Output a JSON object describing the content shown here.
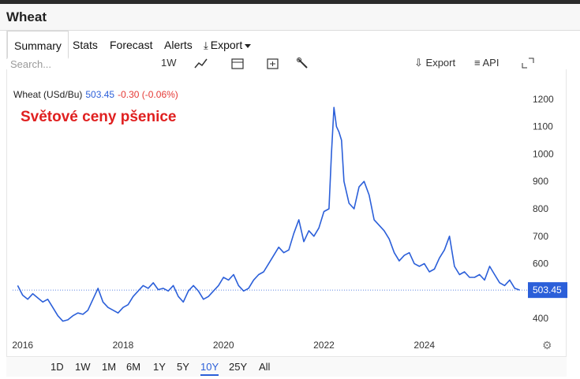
{
  "app": {
    "title": "Wheat"
  },
  "tabs": [
    {
      "label": "Summary",
      "active": true
    },
    {
      "label": "Stats"
    },
    {
      "label": "Forecast"
    },
    {
      "label": "Alerts"
    },
    {
      "label": "Export",
      "icon": "download-icon",
      "dropdown": true
    }
  ],
  "toolbar": {
    "search_placeholder": "Search...",
    "interval": "1W",
    "export_label": "Export",
    "api_label": "API"
  },
  "legend": {
    "name": "Wheat (USd/Bu)",
    "price": "503.45",
    "change": "-0.30 (-0.06%)"
  },
  "annotation": "Světové ceny pšenice",
  "ranges": [
    "1D",
    "1W",
    "1M",
    "6M",
    "1Y",
    "5Y",
    "10Y",
    "25Y",
    "All"
  ],
  "active_range": "10Y",
  "colors": {
    "line": "#2b5fd9",
    "accent": "#2b5fd9",
    "negative": "#e53935",
    "annotation": "#e02020"
  },
  "chart_data": {
    "type": "line",
    "series": [
      {
        "name": "Wheat (USd/Bu)",
        "x": [
          2015.9,
          2016.0,
          2016.1,
          2016.2,
          2016.3,
          2016.4,
          2016.5,
          2016.6,
          2016.7,
          2016.8,
          2016.9,
          2017.0,
          2017.1,
          2017.2,
          2017.3,
          2017.4,
          2017.5,
          2017.6,
          2017.7,
          2017.8,
          2017.9,
          2018.0,
          2018.1,
          2018.2,
          2018.3,
          2018.4,
          2018.5,
          2018.6,
          2018.7,
          2018.8,
          2018.9,
          2019.0,
          2019.1,
          2019.2,
          2019.3,
          2019.4,
          2019.5,
          2019.6,
          2019.7,
          2019.8,
          2019.9,
          2020.0,
          2020.1,
          2020.2,
          2020.3,
          2020.4,
          2020.5,
          2020.6,
          2020.7,
          2020.8,
          2020.9,
          2021.0,
          2021.1,
          2021.2,
          2021.3,
          2021.4,
          2021.5,
          2021.6,
          2021.7,
          2021.8,
          2021.9,
          2022.0,
          2022.1,
          2022.15,
          2022.2,
          2022.25,
          2022.3,
          2022.35,
          2022.4,
          2022.5,
          2022.6,
          2022.7,
          2022.8,
          2022.9,
          2023.0,
          2023.1,
          2023.2,
          2023.3,
          2023.4,
          2023.5,
          2023.6,
          2023.7,
          2023.8,
          2023.9,
          2024.0,
          2024.1,
          2024.2,
          2024.3,
          2024.4,
          2024.5,
          2024.6,
          2024.7,
          2024.8,
          2024.9,
          2025.0,
          2025.1,
          2025.2,
          2025.3,
          2025.4,
          2025.5,
          2025.6,
          2025.7,
          2025.8,
          2025.9
        ],
        "values": [
          520,
          485,
          470,
          490,
          475,
          460,
          470,
          440,
          410,
          390,
          395,
          410,
          420,
          415,
          430,
          470,
          510,
          460,
          440,
          430,
          420,
          440,
          450,
          480,
          500,
          520,
          510,
          530,
          505,
          510,
          500,
          520,
          480,
          460,
          500,
          520,
          500,
          470,
          480,
          500,
          520,
          550,
          540,
          560,
          520,
          500,
          510,
          540,
          560,
          570,
          600,
          630,
          660,
          640,
          650,
          710,
          760,
          680,
          720,
          700,
          730,
          790,
          800,
          1000,
          1170,
          1100,
          1080,
          1050,
          900,
          820,
          800,
          880,
          900,
          850,
          760,
          740,
          720,
          690,
          640,
          610,
          630,
          640,
          600,
          590,
          600,
          570,
          580,
          620,
          650,
          700,
          590,
          560,
          570,
          550,
          550,
          560,
          540,
          590,
          560,
          530,
          520,
          540,
          510,
          503.45
        ]
      }
    ],
    "x_ticks": [
      "2016",
      "2018",
      "2020",
      "2022",
      "2024"
    ],
    "y_ticks": [
      400,
      500,
      600,
      700,
      800,
      900,
      1000,
      1100,
      1200
    ],
    "x_range": [
      2015.8,
      2026.0
    ],
    "y_range": [
      340,
      1260
    ],
    "last_value": "503.45",
    "grid": false
  }
}
